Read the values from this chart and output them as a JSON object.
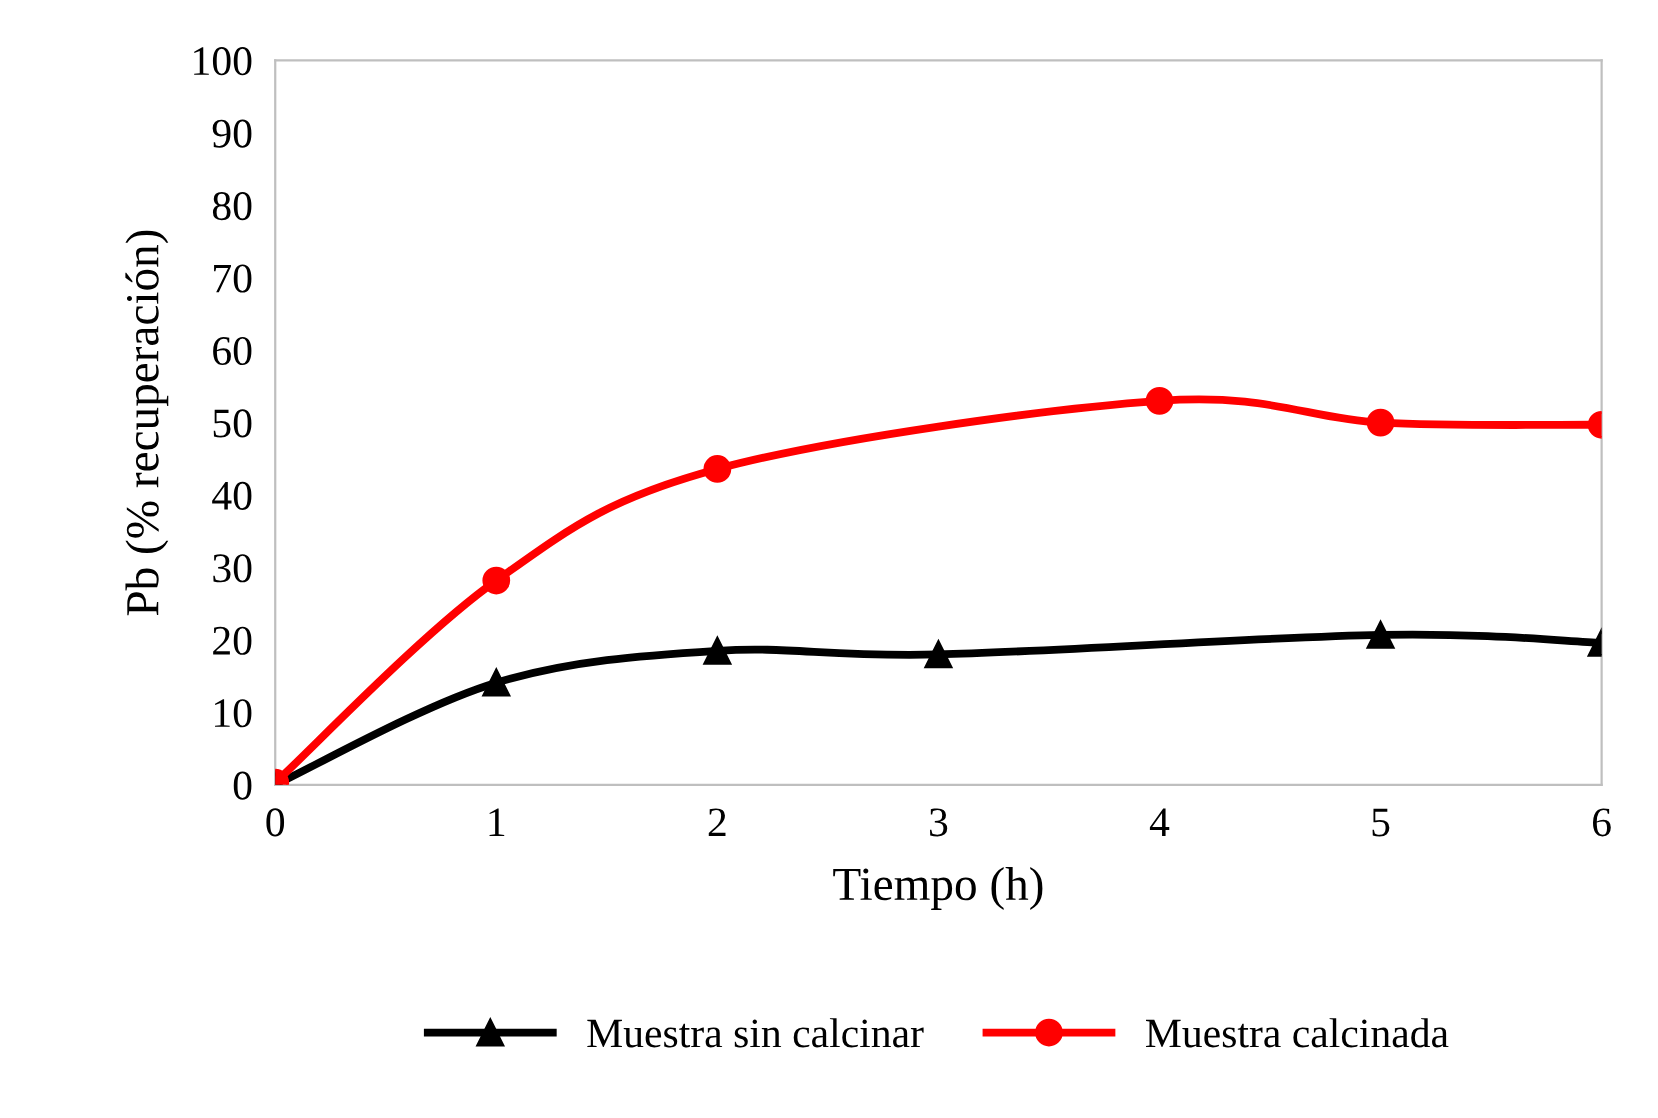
{
  "chart_data": {
    "type": "line",
    "xlabel": "Tiempo (h)",
    "ylabel": "Pb (% recuperación)",
    "xlim": [
      0,
      6
    ],
    "xticks": [
      0,
      1,
      2,
      3,
      4,
      5,
      6
    ],
    "ylim": [
      0,
      100
    ],
    "yticks": [
      0,
      10,
      20,
      30,
      40,
      50,
      60,
      70,
      80,
      90,
      100
    ],
    "grid": false,
    "legend": "bottom",
    "line_style": "solid",
    "series": [
      {
        "name": "Muestra sin calcinar",
        "color": "#000000",
        "marker": "triangle",
        "x": [
          0,
          1,
          2,
          3,
          5,
          6
        ],
        "values": [
          0,
          14.1,
          18.5,
          18.0,
          20.7,
          19.6
        ]
      },
      {
        "name": "Muestra calcinada",
        "color": "#ff0000",
        "marker": "circle",
        "x": [
          0,
          1,
          2,
          4,
          5,
          6
        ],
        "values": [
          0.3,
          28.2,
          43.6,
          53.0,
          50.0,
          49.7
        ]
      }
    ]
  }
}
